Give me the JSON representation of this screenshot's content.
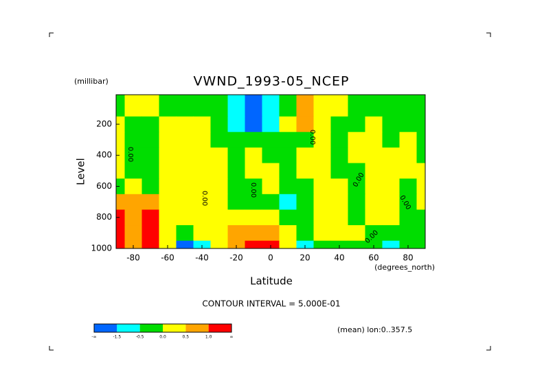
{
  "chart_data": {
    "type": "contour",
    "title": "VWND_1993-05_NCEP",
    "y_unit": "(millibar)",
    "y_label": "Level",
    "x_label": "Latitude",
    "x_unit": "(degrees_north)",
    "note": "CONTOUR INTERVAL = 5.000E-01",
    "subnote": "(mean) lon:0..357.5",
    "xlim": [
      -90,
      90
    ],
    "ylim": [
      1000,
      10
    ],
    "xticks": [
      -80,
      -60,
      -40,
      -20,
      0,
      20,
      40,
      60,
      80
    ],
    "yticks": [
      200,
      400,
      600,
      800,
      1000
    ],
    "x": [
      -90,
      -80,
      -70,
      -60,
      -50,
      -40,
      -30,
      -20,
      -10,
      0,
      10,
      20,
      30,
      40,
      50,
      60,
      70,
      80,
      90
    ],
    "y": [
      100,
      200,
      300,
      400,
      500,
      600,
      700,
      800,
      900,
      1000
    ],
    "z": [
      [
        -0.2,
        0.2,
        0.2,
        -0.2,
        -0.2,
        -0.2,
        -0.3,
        -0.8,
        -1.8,
        -0.8,
        -0.2,
        0.6,
        0.2,
        0.1,
        -0.2,
        -0.2,
        -0.2,
        -0.2,
        -0.2
      ],
      [
        0.1,
        -0.2,
        -0.2,
        0.2,
        0.2,
        0.2,
        -0.2,
        -0.6,
        -1.6,
        -0.6,
        0.2,
        0.7,
        0.2,
        -0.2,
        -0.2,
        0.2,
        -0.2,
        -0.2,
        -0.2
      ],
      [
        0.2,
        -0.2,
        -0.2,
        0.2,
        0.2,
        0.2,
        -0.2,
        -0.2,
        -0.3,
        -0.2,
        -0.2,
        -0.2,
        0.2,
        -0.2,
        0.2,
        0.2,
        -0.2,
        0.2,
        -0.2
      ],
      [
        0.2,
        -0.2,
        -0.2,
        0.2,
        0.2,
        0.2,
        0.1,
        -0.2,
        0.2,
        -0.2,
        -0.2,
        0.2,
        0.2,
        -0.2,
        0.2,
        0.2,
        0.2,
        0.2,
        -0.2
      ],
      [
        0.2,
        -0.2,
        -0.2,
        0.2,
        0.2,
        0.2,
        0.2,
        -0.2,
        0.2,
        0.2,
        -0.2,
        0.2,
        0.2,
        -0.2,
        -0.2,
        0.2,
        0.2,
        0.2,
        0.2
      ],
      [
        -0.2,
        0.2,
        -0.2,
        0.2,
        0.2,
        0.2,
        0.2,
        -0.2,
        -0.2,
        0.2,
        -0.2,
        -0.3,
        0.2,
        0.2,
        -0.2,
        0.2,
        0.2,
        -0.2,
        0.2
      ],
      [
        0.6,
        0.6,
        0.7,
        0.2,
        0.2,
        0.2,
        0.2,
        -0.2,
        -0.2,
        -0.2,
        -0.6,
        -0.2,
        0.2,
        0.2,
        -0.2,
        0.2,
        0.2,
        -0.2,
        0.2
      ],
      [
        1.2,
        0.8,
        1.3,
        0.2,
        0.2,
        0.2,
        0.2,
        0.2,
        0.2,
        0.2,
        -0.2,
        -0.2,
        0.2,
        0.2,
        -0.2,
        0.2,
        0.2,
        -0.2,
        -0.2
      ],
      [
        1.8,
        0.8,
        1.8,
        0.2,
        -0.2,
        0.2,
        0.2,
        0.6,
        0.7,
        0.6,
        0.2,
        -0.2,
        0.2,
        0.2,
        0.2,
        -0.2,
        -0.2,
        -0.2,
        -0.2
      ],
      [
        1.8,
        0.8,
        1.8,
        0.2,
        -1.7,
        -0.7,
        0.2,
        0.8,
        1.6,
        1.2,
        0.2,
        -0.6,
        -0.2,
        -0.2,
        -0.2,
        -0.2,
        -0.6,
        -0.2,
        -0.2
      ]
    ],
    "colorbar": {
      "edges": [
        "-∞",
        -1.5,
        -0.5,
        {
          "value": 0,
          "label": "0.0"
        },
        0.5,
        {
          "value": 1,
          "label": "1.0"
        },
        "∞"
      ],
      "colors": [
        "#0066ff",
        "#00ffff",
        "#00dd00",
        "#ffff00",
        "#ffa500",
        "#ff0000"
      ]
    },
    "contour_labels": [
      "0.00",
      "0.00",
      "0.00",
      "0.00",
      "0.00",
      "0.00",
      "0.00"
    ]
  }
}
